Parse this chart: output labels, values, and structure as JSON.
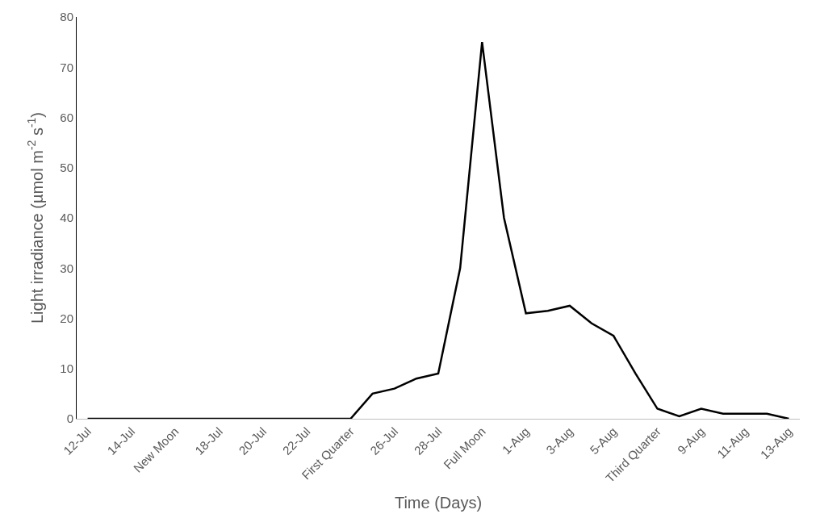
{
  "chart_data": {
    "type": "line",
    "xlabel": "Time (Days)",
    "ylabel": "Light irradiance (µmol m$^{-2}$ s$^{-1}$)",
    "categories": [
      "12-Jul",
      null,
      "14-Jul",
      null,
      "New Moon",
      null,
      "18-Jul",
      null,
      "20-Jul",
      null,
      "22-Jul",
      null,
      "First Quarter",
      null,
      "26-Jul",
      null,
      "28-Jul",
      null,
      "Full Moon",
      null,
      "1-Aug",
      null,
      "3-Aug",
      null,
      "5-Aug",
      null,
      "Third Quarter",
      null,
      "9-Aug",
      null,
      "11-Aug",
      null,
      "13-Aug"
    ],
    "series": [
      {
        "color": "#000000",
        "values": [
          0,
          0,
          0,
          0,
          0,
          0,
          0,
          0,
          0,
          0,
          0,
          0,
          0,
          5,
          6,
          8,
          9,
          30,
          75,
          40,
          21,
          21.5,
          22.5,
          19,
          16.5,
          9,
          2,
          0.5,
          2,
          1,
          1,
          1,
          0
        ]
      }
    ],
    "ylim": [
      0,
      80
    ],
    "yticks": [
      0,
      10,
      20,
      30,
      40,
      50,
      60,
      70,
      80
    ],
    "legend": false,
    "marker": "none",
    "line_style": "solid"
  }
}
